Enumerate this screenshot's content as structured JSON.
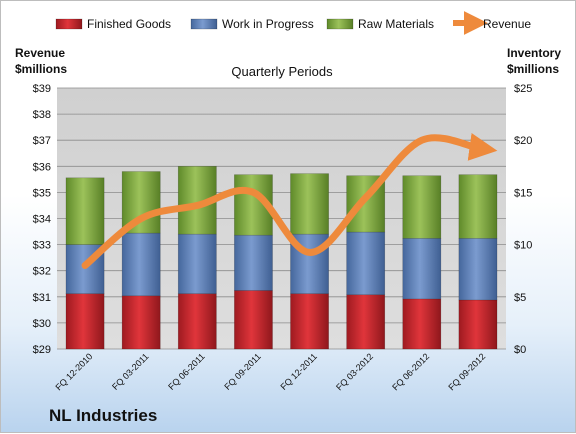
{
  "company": "NL Industries",
  "left_axis_head": [
    "Revenue",
    "$millions"
  ],
  "right_axis_head": [
    "Inventory",
    "$millions"
  ],
  "colors": {
    "finished_goods": "#cc2229",
    "work_in_progress": "#5b7fb8",
    "raw_materials": "#7ea93d",
    "revenue": "#ee8a3c",
    "plot_bg": "#d9d9d9"
  },
  "chart_data": {
    "type": "bar",
    "subtitle": "Quarterly Periods",
    "categories": [
      "FQ 12-2010",
      "FQ 03-2011",
      "FQ 06-2011",
      "FQ 09-2011",
      "FQ 12-2011",
      "FQ 03-2012",
      "FQ 06-2012",
      "FQ 09-2012"
    ],
    "series": [
      {
        "name": "Finished Goods",
        "axis": "right",
        "stack": true,
        "values": [
          5.3,
          5.1,
          5.3,
          5.6,
          5.3,
          5.2,
          4.8,
          4.7
        ]
      },
      {
        "name": "Work in Progress",
        "axis": "right",
        "stack": true,
        "values": [
          4.7,
          6.0,
          5.7,
          5.3,
          5.7,
          6.0,
          5.8,
          5.9
        ]
      },
      {
        "name": "Raw Materials",
        "axis": "right",
        "stack": true,
        "values": [
          6.4,
          5.9,
          6.5,
          5.8,
          5.8,
          5.4,
          6.0,
          6.1
        ]
      },
      {
        "name": "Revenue",
        "type": "line",
        "axis": "left",
        "values": [
          32.2,
          34.0,
          34.5,
          35.0,
          32.7,
          34.8,
          37.0,
          36.7
        ]
      }
    ],
    "y_left": {
      "min": 29,
      "max": 39,
      "step": 1,
      "tick_labels": [
        "$29",
        "$30",
        "$31",
        "$32",
        "$33",
        "$34",
        "$35",
        "$36",
        "$37",
        "$38",
        "$39"
      ]
    },
    "y_right": {
      "min": 0,
      "max": 25,
      "step": 5,
      "tick_labels": [
        "$0",
        "$5",
        "$10",
        "$15",
        "$20",
        "$25"
      ]
    },
    "grid": true,
    "legend": "top"
  }
}
